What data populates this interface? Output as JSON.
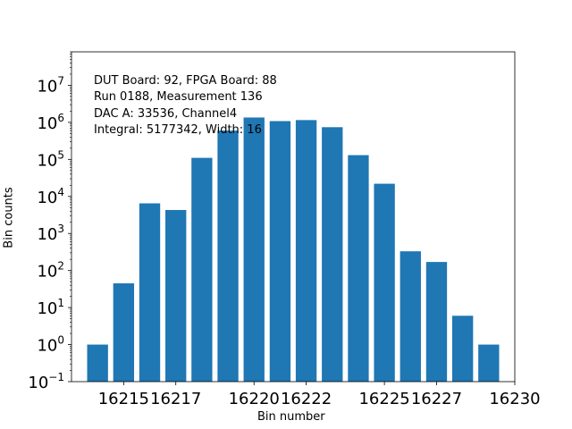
{
  "chart_data": {
    "type": "bar",
    "title": "",
    "xlabel": "Bin number",
    "ylabel": "Bin counts",
    "yscale": "log",
    "ylim": [
      0.1,
      80000000
    ],
    "xlim": [
      16213.2,
      16230.2
    ],
    "bar_color": "#1f77b4",
    "x_ticks": [
      {
        "value": 16215.2,
        "label": "16215"
      },
      {
        "value": 16217.2,
        "label": "16217"
      },
      {
        "value": 16220.2,
        "label": "16220"
      },
      {
        "value": 16222.2,
        "label": "16222"
      },
      {
        "value": 16225.2,
        "label": "16225"
      },
      {
        "value": 16227.2,
        "label": "16227"
      },
      {
        "value": 16230.2,
        "label": "16230"
      }
    ],
    "y_ticks": [
      {
        "exp": -1,
        "mant": "10",
        "sup": "−1"
      },
      {
        "exp": 0,
        "mant": "10",
        "sup": "0"
      },
      {
        "exp": 1,
        "mant": "10",
        "sup": "1"
      },
      {
        "exp": 2,
        "mant": "10",
        "sup": "2"
      },
      {
        "exp": 3,
        "mant": "10",
        "sup": "3"
      },
      {
        "exp": 4,
        "mant": "10",
        "sup": "4"
      },
      {
        "exp": 5,
        "mant": "10",
        "sup": "5"
      },
      {
        "exp": 6,
        "mant": "10",
        "sup": "6"
      },
      {
        "exp": 7,
        "mant": "10",
        "sup": "7"
      }
    ],
    "bar_width": 0.8,
    "x": [
      16214.2,
      16215.2,
      16216.2,
      16217.2,
      16218.2,
      16219.2,
      16220.2,
      16221.2,
      16222.2,
      16223.2,
      16224.2,
      16225.2,
      16226.2,
      16227.2,
      16228.2,
      16229.2
    ],
    "values": [
      1,
      45,
      6500,
      4300,
      110000,
      600000,
      1350000,
      1080000,
      1150000,
      740000,
      130000,
      22000,
      330,
      170,
      6,
      1
    ],
    "annotations": [
      "DUT Board: 92, FPGA Board: 88",
      "Run 0188, Measurement 136",
      "DAC A: 33536, Channel4",
      "Integral: 5177342, Width: 16"
    ]
  }
}
